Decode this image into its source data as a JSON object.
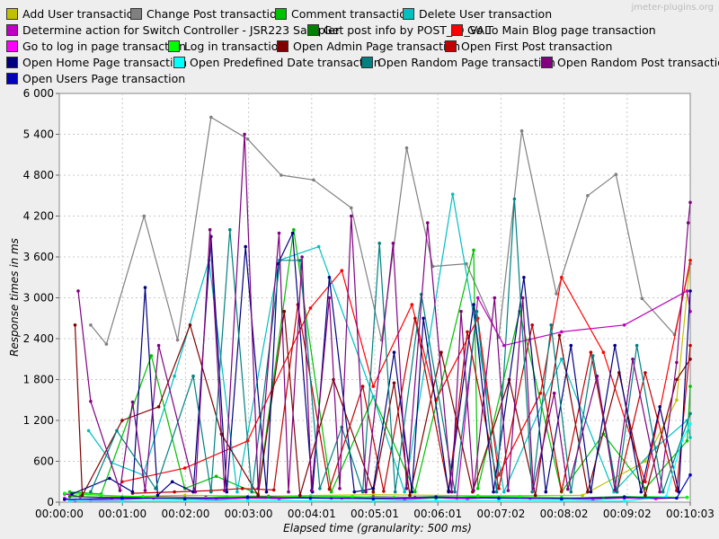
{
  "watermark": "jmeter-plugins.org",
  "chart_data": {
    "type": "line",
    "title": "",
    "xlabel": "Elapsed time (granularity: 500 ms)",
    "ylabel": "Response times in ms",
    "xlim_seconds": [
      0,
      603
    ],
    "ylim": [
      0,
      6000
    ],
    "x_ticks": [
      "00:00:00",
      "00:01:00",
      "00:02:00",
      "00:03:00",
      "00:04:01",
      "00:05:01",
      "00:06:01",
      "00:07:02",
      "00:08:02",
      "00:09:02",
      "00:10:03"
    ],
    "y_ticks": [
      "0",
      "600",
      "1 200",
      "1 800",
      "2 400",
      "3 000",
      "3 600",
      "4 200",
      "4 800",
      "5 400",
      "6 000"
    ],
    "grid": true,
    "legend_position": "top",
    "series": [
      {
        "name": "Add User transaction",
        "color": "#c0c000",
        "x": [
          20,
          60,
          120,
          200,
          300,
          400,
          500,
          560,
          590,
          603
        ],
        "y": [
          120,
          80,
          100,
          90,
          110,
          95,
          100,
          600,
          1500,
          3550
        ]
      },
      {
        "name": "Change Post transaction",
        "color": "#808080",
        "x": [
          30,
          45,
          81,
          113,
          145,
          180,
          212,
          243,
          279,
          308,
          332,
          357,
          389,
          420,
          442,
          475,
          505,
          532,
          557,
          588,
          603
        ],
        "y": [
          2600,
          2320,
          4200,
          2380,
          5650,
          5330,
          4800,
          4730,
          4320,
          2380,
          5200,
          3460,
          3500,
          2420,
          5450,
          3060,
          4500,
          4810,
          2990,
          2460,
          3500
        ]
      },
      {
        "name": "Comment transaction",
        "color": "#00c000",
        "x": [
          10,
          40,
          88,
          120,
          150,
          190,
          224,
          260,
          300,
          340,
          396,
          400,
          440,
          480,
          520,
          560,
          600,
          603
        ],
        "y": [
          150,
          120,
          2150,
          200,
          380,
          120,
          4000,
          150,
          1550,
          150,
          3700,
          200,
          2800,
          150,
          1000,
          200,
          900,
          1700
        ]
      },
      {
        "name": "Delete User transaction",
        "color": "#00c0c0",
        "x": [
          28,
          50,
          80,
          110,
          143,
          170,
          210,
          248,
          300,
          330,
          376,
          425,
          480,
          530,
          570,
          600,
          603
        ],
        "y": [
          1050,
          580,
          400,
          1850,
          3550,
          150,
          3550,
          3750,
          1550,
          150,
          4520,
          150,
          2100,
          150,
          800,
          1200,
          950
        ]
      },
      {
        "name": "Determine action for Switch Controller - JSR223 Sampler",
        "color": "#c000c0",
        "x": [
          5,
          20,
          50,
          80,
          140,
          200,
          260,
          300,
          340,
          380,
          400,
          425,
          480,
          540,
          600,
          603
        ],
        "y": [
          120,
          80,
          60,
          80,
          70,
          80,
          60,
          80,
          70,
          60,
          3000,
          2300,
          2500,
          2600,
          3100,
          2800
        ]
      },
      {
        "name": "Get post info by POST_ID_VAL",
        "color": "#008000",
        "x": [
          10,
          60,
          120,
          180,
          240,
          300,
          360,
          420,
          480,
          540,
          600
        ],
        "y": [
          80,
          70,
          60,
          80,
          70,
          60,
          80,
          70,
          60,
          80,
          70
        ]
      },
      {
        "name": "Go To Main Blog page transaction",
        "color": "#ff0000",
        "x": [
          60,
          120,
          180,
          240,
          270,
          300,
          337,
          360,
          400,
          420,
          460,
          480,
          520,
          560,
          603
        ],
        "y": [
          300,
          500,
          900,
          2850,
          3400,
          1700,
          2900,
          1500,
          2700,
          400,
          1600,
          3300,
          2200,
          300,
          3550
        ]
      },
      {
        "name": "Go to log in page transaction",
        "color": "#ff00ff",
        "x": [
          5,
          15,
          30,
          60,
          90,
          120,
          150,
          180,
          210,
          240,
          270,
          300,
          330,
          360,
          390,
          420,
          450,
          480,
          510,
          540,
          570,
          600
        ],
        "y": [
          60,
          20,
          30,
          40,
          60,
          50,
          40,
          60,
          50,
          70,
          60,
          50,
          40,
          60,
          50,
          70,
          60,
          50,
          40,
          60,
          50,
          70
        ]
      },
      {
        "name": "Log in transaction",
        "color": "#00ff00",
        "x": [
          5,
          40,
          80,
          120,
          160,
          200,
          240,
          280,
          320,
          360,
          400,
          440,
          480,
          520,
          560,
          600
        ],
        "y": [
          130,
          100,
          80,
          60,
          80,
          70,
          90,
          80,
          70,
          60,
          90,
          80,
          70,
          60,
          80,
          70
        ]
      },
      {
        "name": "Open Admin Page transaction",
        "color": "#800000",
        "x": [
          15,
          22,
          60,
          95,
          125,
          155,
          190,
          215,
          230,
          262,
          300,
          320,
          335,
          365,
          395,
          430,
          455,
          478,
          505,
          535,
          560,
          590,
          603
        ],
        "y": [
          2600,
          100,
          1200,
          1400,
          2600,
          1000,
          100,
          2800,
          100,
          1800,
          150,
          1750,
          100,
          2200,
          150,
          1800,
          100,
          2450,
          150,
          1900,
          100,
          1800,
          2100
        ]
      },
      {
        "name": "Open First Post transaction",
        "color": "#c00000",
        "x": [
          70,
          110,
          145,
          175,
          205,
          228,
          258,
          290,
          310,
          340,
          372,
          390,
          420,
          452,
          480,
          508,
          533,
          560,
          590,
          603
        ],
        "y": [
          130,
          150,
          170,
          200,
          180,
          2900,
          190,
          1700,
          160,
          2700,
          170,
          2500,
          200,
          2600,
          160,
          2200,
          150,
          1900,
          170,
          2300
        ]
      },
      {
        "name": "Open Home Page transaction",
        "color": "#000080",
        "x": [
          12,
          48,
          70,
          82,
          94,
          108,
          128,
          145,
          160,
          178,
          198,
          209,
          223,
          242,
          258,
          282,
          300,
          320,
          337,
          348,
          372,
          396,
          415,
          444,
          465,
          489,
          508,
          531,
          556,
          574,
          592,
          603
        ],
        "y": [
          120,
          350,
          150,
          3150,
          100,
          300,
          150,
          3900,
          150,
          3750,
          150,
          3500,
          3950,
          150,
          3300,
          150,
          200,
          2200,
          150,
          2700,
          150,
          2900,
          150,
          3300,
          150,
          2300,
          150,
          2300,
          150,
          1400,
          150,
          3100
        ]
      },
      {
        "name": "Open Predefined Date transaction",
        "color": "#00ffff",
        "x": [
          10,
          60,
          120,
          180,
          240,
          300,
          360,
          420,
          480,
          540,
          580,
          595,
          603
        ],
        "y": [
          20,
          15,
          20,
          25,
          20,
          15,
          20,
          25,
          20,
          15,
          80,
          900,
          1150
        ]
      },
      {
        "name": "Open Random Page transaction",
        "color": "#008080",
        "x": [
          30,
          55,
          92,
          128,
          145,
          163,
          184,
          211,
          230,
          249,
          270,
          290,
          306,
          321,
          346,
          378,
          399,
          418,
          435,
          452,
          470,
          489,
          510,
          533,
          552,
          577,
          603
        ],
        "y": [
          150,
          1050,
          200,
          1850,
          150,
          4000,
          150,
          3550,
          3550,
          200,
          1100,
          150,
          3800,
          150,
          3050,
          150,
          2800,
          150,
          4450,
          150,
          2600,
          150,
          2150,
          150,
          2300,
          150,
          1300
        ]
      },
      {
        "name": "Open Random Post transaction",
        "color": "#800080",
        "x": [
          18,
          30,
          58,
          70,
          82,
          95,
          130,
          144,
          158,
          177,
          190,
          210,
          219,
          232,
          241,
          258,
          268,
          279,
          293,
          319,
          332,
          352,
          375,
          384,
          396,
          416,
          429,
          443,
          453,
          473,
          486,
          514,
          531,
          548,
          574,
          590,
          601,
          603
        ],
        "y": [
          3100,
          1480,
          170,
          1470,
          170,
          2300,
          150,
          4000,
          170,
          5400,
          200,
          3950,
          150,
          3600,
          170,
          3000,
          200,
          4200,
          150,
          3800,
          200,
          4100,
          150,
          2800,
          170,
          3000,
          170,
          3000,
          200,
          1600,
          190,
          1850,
          180,
          2100,
          150,
          2050,
          4100,
          4400
        ]
      },
      {
        "name": "Open Users Page transaction",
        "color": "#0000c0",
        "x": [
          5,
          60,
          120,
          180,
          240,
          300,
          360,
          420,
          480,
          540,
          590,
          603
        ],
        "y": [
          40,
          60,
          50,
          70,
          60,
          50,
          70,
          60,
          50,
          70,
          60,
          400
        ]
      }
    ]
  }
}
